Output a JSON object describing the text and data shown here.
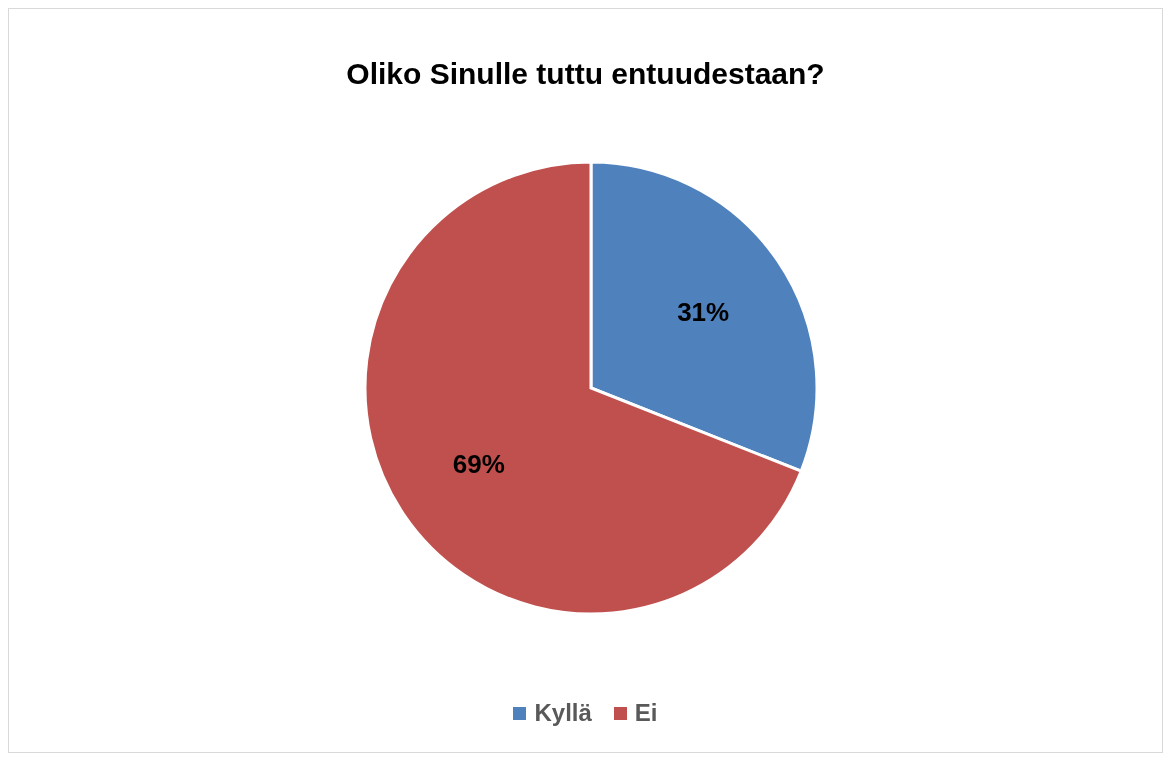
{
  "chart_data": {
    "type": "pie",
    "title": "Oliko Sinulle tuttu entuudestaan?",
    "categories": [
      "Kyllä",
      "Ei"
    ],
    "values": [
      31,
      69
    ],
    "value_labels": [
      "31%",
      "69%"
    ],
    "colors": [
      "#4f81bd",
      "#c0504d"
    ],
    "legend": "bottom"
  }
}
